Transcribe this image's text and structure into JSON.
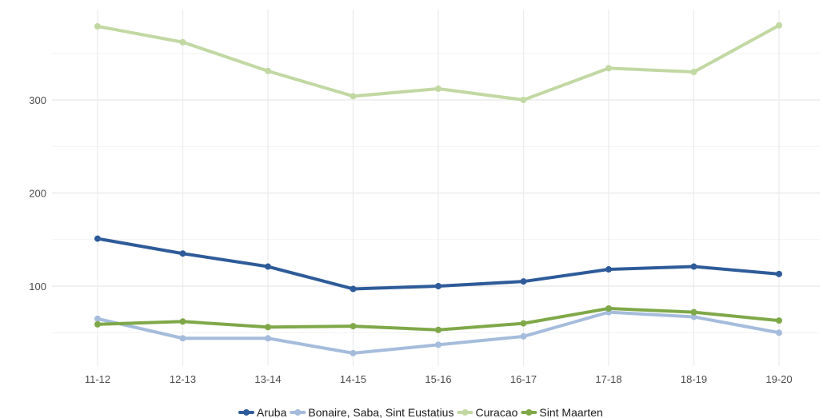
{
  "chart_data": {
    "type": "line",
    "title": "",
    "xlabel": "",
    "ylabel": "",
    "categories": [
      "11-12",
      "12-13",
      "13-14",
      "14-15",
      "15-16",
      "16-17",
      "17-18",
      "18-19",
      "19-20"
    ],
    "yticks": [
      100,
      200,
      300
    ],
    "ylim": [
      20,
      395
    ],
    "grid": true,
    "legend_position": "bottom",
    "series": [
      {
        "name": "Aruba",
        "color": "#2e5b99",
        "values": [
          151,
          135,
          121,
          97,
          100,
          105,
          118,
          121,
          113
        ]
      },
      {
        "name": "Bonaire, Saba, Sint Eustatius",
        "color": "#a5bcdc",
        "values": [
          65,
          44,
          44,
          28,
          37,
          46,
          72,
          67,
          50
        ]
      },
      {
        "name": "Curacao",
        "color": "#c2d8a3",
        "values": [
          379,
          362,
          331,
          304,
          312,
          300,
          334,
          330,
          380
        ]
      },
      {
        "name": "Sint Maarten",
        "color": "#7fa849",
        "values": [
          59,
          62,
          56,
          57,
          53,
          60,
          76,
          72,
          63
        ]
      }
    ]
  }
}
